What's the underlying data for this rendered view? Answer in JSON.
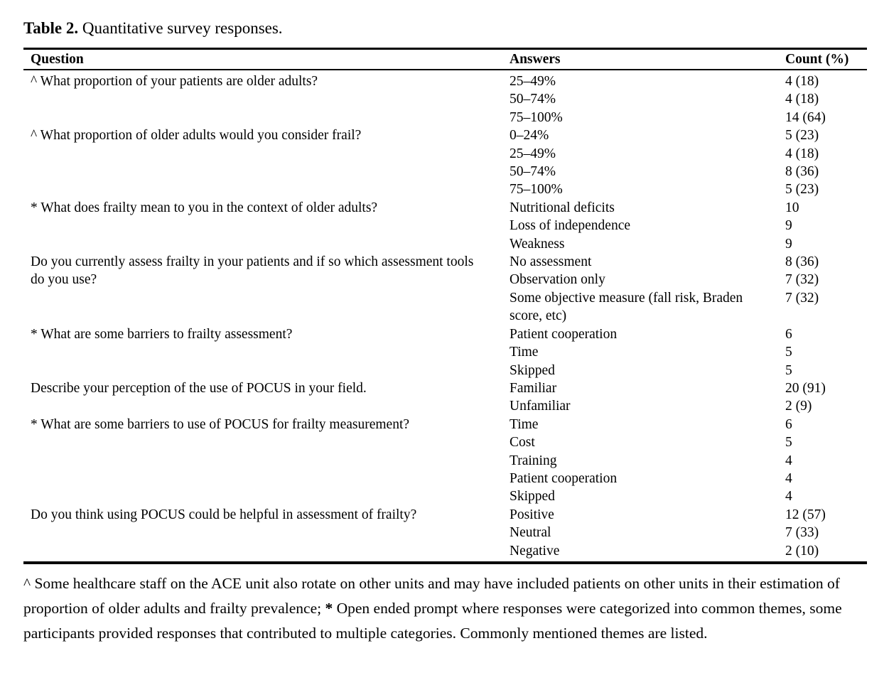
{
  "caption": {
    "label": "Table 2.",
    "text": " Quantitative survey responses."
  },
  "table": {
    "headers": [
      "Question",
      "Answers",
      "Count (%)"
    ],
    "groups": [
      {
        "question": "^ What proportion of your patients are older adults?",
        "answers": [
          {
            "answer": "25–49%",
            "count": "4 (18)"
          },
          {
            "answer": "50–74%",
            "count": "4 (18)"
          },
          {
            "answer": "75–100%",
            "count": "14 (64)"
          }
        ]
      },
      {
        "question": "^ What proportion of older adults would you consider frail?",
        "answers": [
          {
            "answer": "0–24%",
            "count": "5 (23)"
          },
          {
            "answer": "25–49%",
            "count": "4 (18)"
          },
          {
            "answer": "50–74%",
            "count": "8 (36)"
          },
          {
            "answer": "75–100%",
            "count": "5 (23)"
          }
        ]
      },
      {
        "question": "* What does frailty mean to you in the context of older adults?",
        "answers": [
          {
            "answer": "Nutritional deficits",
            "count": "10"
          },
          {
            "answer": "Loss of independence",
            "count": "9"
          },
          {
            "answer": "Weakness",
            "count": "9"
          }
        ]
      },
      {
        "question": "Do you currently assess frailty in your patients and if so which assessment tools do you use?",
        "answers": [
          {
            "answer": "No assessment",
            "count": "8 (36)"
          },
          {
            "answer": "Observation only",
            "count": "7 (32)"
          },
          {
            "answer": "Some objective measure (fall risk, Braden score, etc)",
            "count": "7 (32)"
          }
        ]
      },
      {
        "question": "* What are some barriers to frailty assessment?",
        "answers": [
          {
            "answer": "Patient cooperation",
            "count": "6"
          },
          {
            "answer": "Time",
            "count": "5"
          },
          {
            "answer": "Skipped",
            "count": "5"
          }
        ]
      },
      {
        "question": "Describe your perception of the use of POCUS in your field.",
        "answers": [
          {
            "answer": "Familiar",
            "count": "20 (91)"
          },
          {
            "answer": "Unfamiliar",
            "count": "2 (9)"
          }
        ]
      },
      {
        "question": "* What are some barriers to use of POCUS for frailty measurement?",
        "answers": [
          {
            "answer": "Time",
            "count": "6"
          },
          {
            "answer": "Cost",
            "count": "5"
          },
          {
            "answer": "Training",
            "count": "4"
          },
          {
            "answer": "Patient cooperation",
            "count": "4"
          },
          {
            "answer": "Skipped",
            "count": "4"
          }
        ]
      },
      {
        "question": "Do you think using POCUS could be helpful in assessment of frailty?",
        "answers": [
          {
            "answer": "Positive",
            "count": "12 (57)"
          },
          {
            "answer": "Neutral",
            "count": "7 (33)"
          },
          {
            "answer": "Negative",
            "count": "2 (10)"
          }
        ]
      }
    ]
  },
  "footnote": {
    "part1": "^ Some healthcare staff on the ACE unit also rotate on other units and may have included patients on other units in their estimation of proportion of older adults and frailty prevalence; ",
    "star": "*",
    "part2": " Open ended prompt where responses were categorized into common themes, some participants provided responses that contributed to multiple categories. Commonly mentioned themes are listed."
  }
}
